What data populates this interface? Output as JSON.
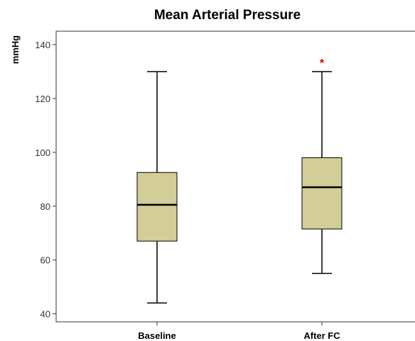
{
  "chart_data": {
    "type": "boxplot",
    "title": "Mean Arterial Pressure",
    "ylabel": "mmHg",
    "xlabel": "",
    "ylim": [
      37,
      145
    ],
    "yticks": [
      40,
      60,
      80,
      100,
      120,
      140
    ],
    "grid": false,
    "categories": [
      "Baseline",
      "After FC"
    ],
    "boxes": [
      {
        "category": "Baseline",
        "min": 44,
        "q1": 67,
        "median": 80.5,
        "q3": 92.5,
        "max": 130,
        "outliers": []
      },
      {
        "category": "After FC",
        "min": 55,
        "q1": 71.5,
        "median": 87,
        "q3": 98,
        "max": 130,
        "outliers": [
          134
        ]
      }
    ],
    "outlier_marker": "*",
    "colors": {
      "box_fill": "#d3cd98",
      "box_stroke": "#000000",
      "outlier": "#e00000",
      "axis": "#333333"
    }
  }
}
